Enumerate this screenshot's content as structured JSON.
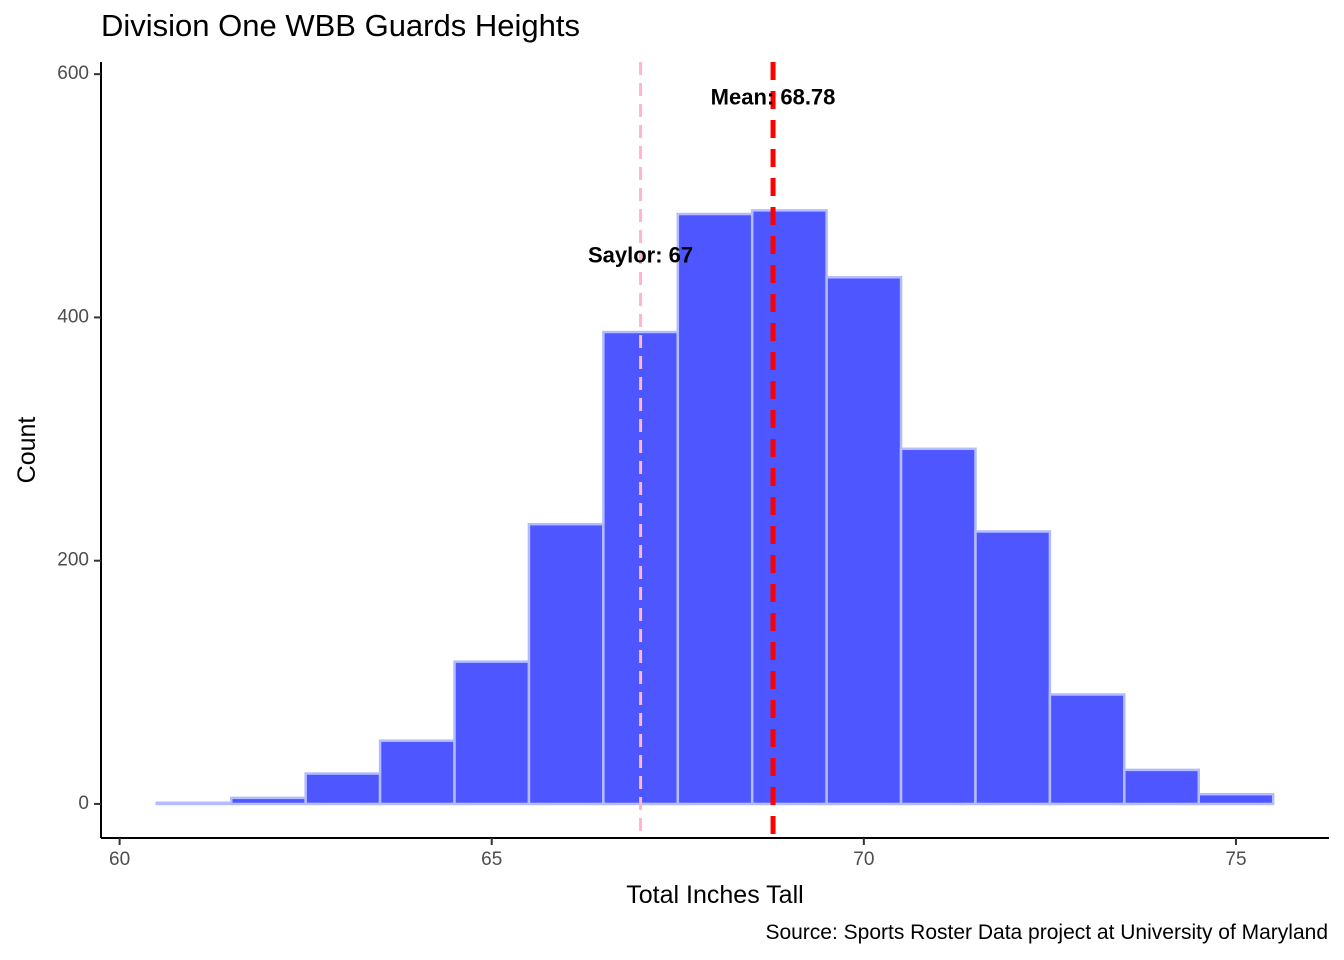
{
  "chart_data": {
    "type": "bar",
    "title": "Division One WBB Guards Heights",
    "xlabel": "Total Inches Tall",
    "ylabel": "Count",
    "caption": "Source: Sports Roster Data project at University of Maryland",
    "bin_width": 1,
    "bins": [
      {
        "x": 61,
        "count": 1
      },
      {
        "x": 62,
        "count": 5
      },
      {
        "x": 63,
        "count": 25
      },
      {
        "x": 64,
        "count": 52
      },
      {
        "x": 65,
        "count": 117
      },
      {
        "x": 66,
        "count": 230
      },
      {
        "x": 67,
        "count": 388
      },
      {
        "x": 68,
        "count": 485
      },
      {
        "x": 69,
        "count": 488
      },
      {
        "x": 70,
        "count": 433
      },
      {
        "x": 71,
        "count": 292
      },
      {
        "x": 72,
        "count": 224
      },
      {
        "x": 73,
        "count": 90
      },
      {
        "x": 74,
        "count": 28
      },
      {
        "x": 75,
        "count": 8
      }
    ],
    "xlim": [
      59.75,
      76.25
    ],
    "ylim": [
      -28,
      610
    ],
    "x_ticks": [
      60,
      65,
      70,
      75
    ],
    "y_ticks": [
      0,
      200,
      400,
      600
    ],
    "grid": false,
    "colors": {
      "fill": "#4d56ff",
      "outline": "#b3bcff"
    },
    "reference_lines": [
      {
        "name": "mean",
        "value": 68.78,
        "label": "Mean: 68.78",
        "color": "#ff0000",
        "style": "dashed",
        "label_y": 580
      },
      {
        "name": "saylor",
        "value": 67,
        "label": "Saylor: 67",
        "color": "#ffb6c8",
        "style": "dashed",
        "label_y": 450
      }
    ]
  }
}
